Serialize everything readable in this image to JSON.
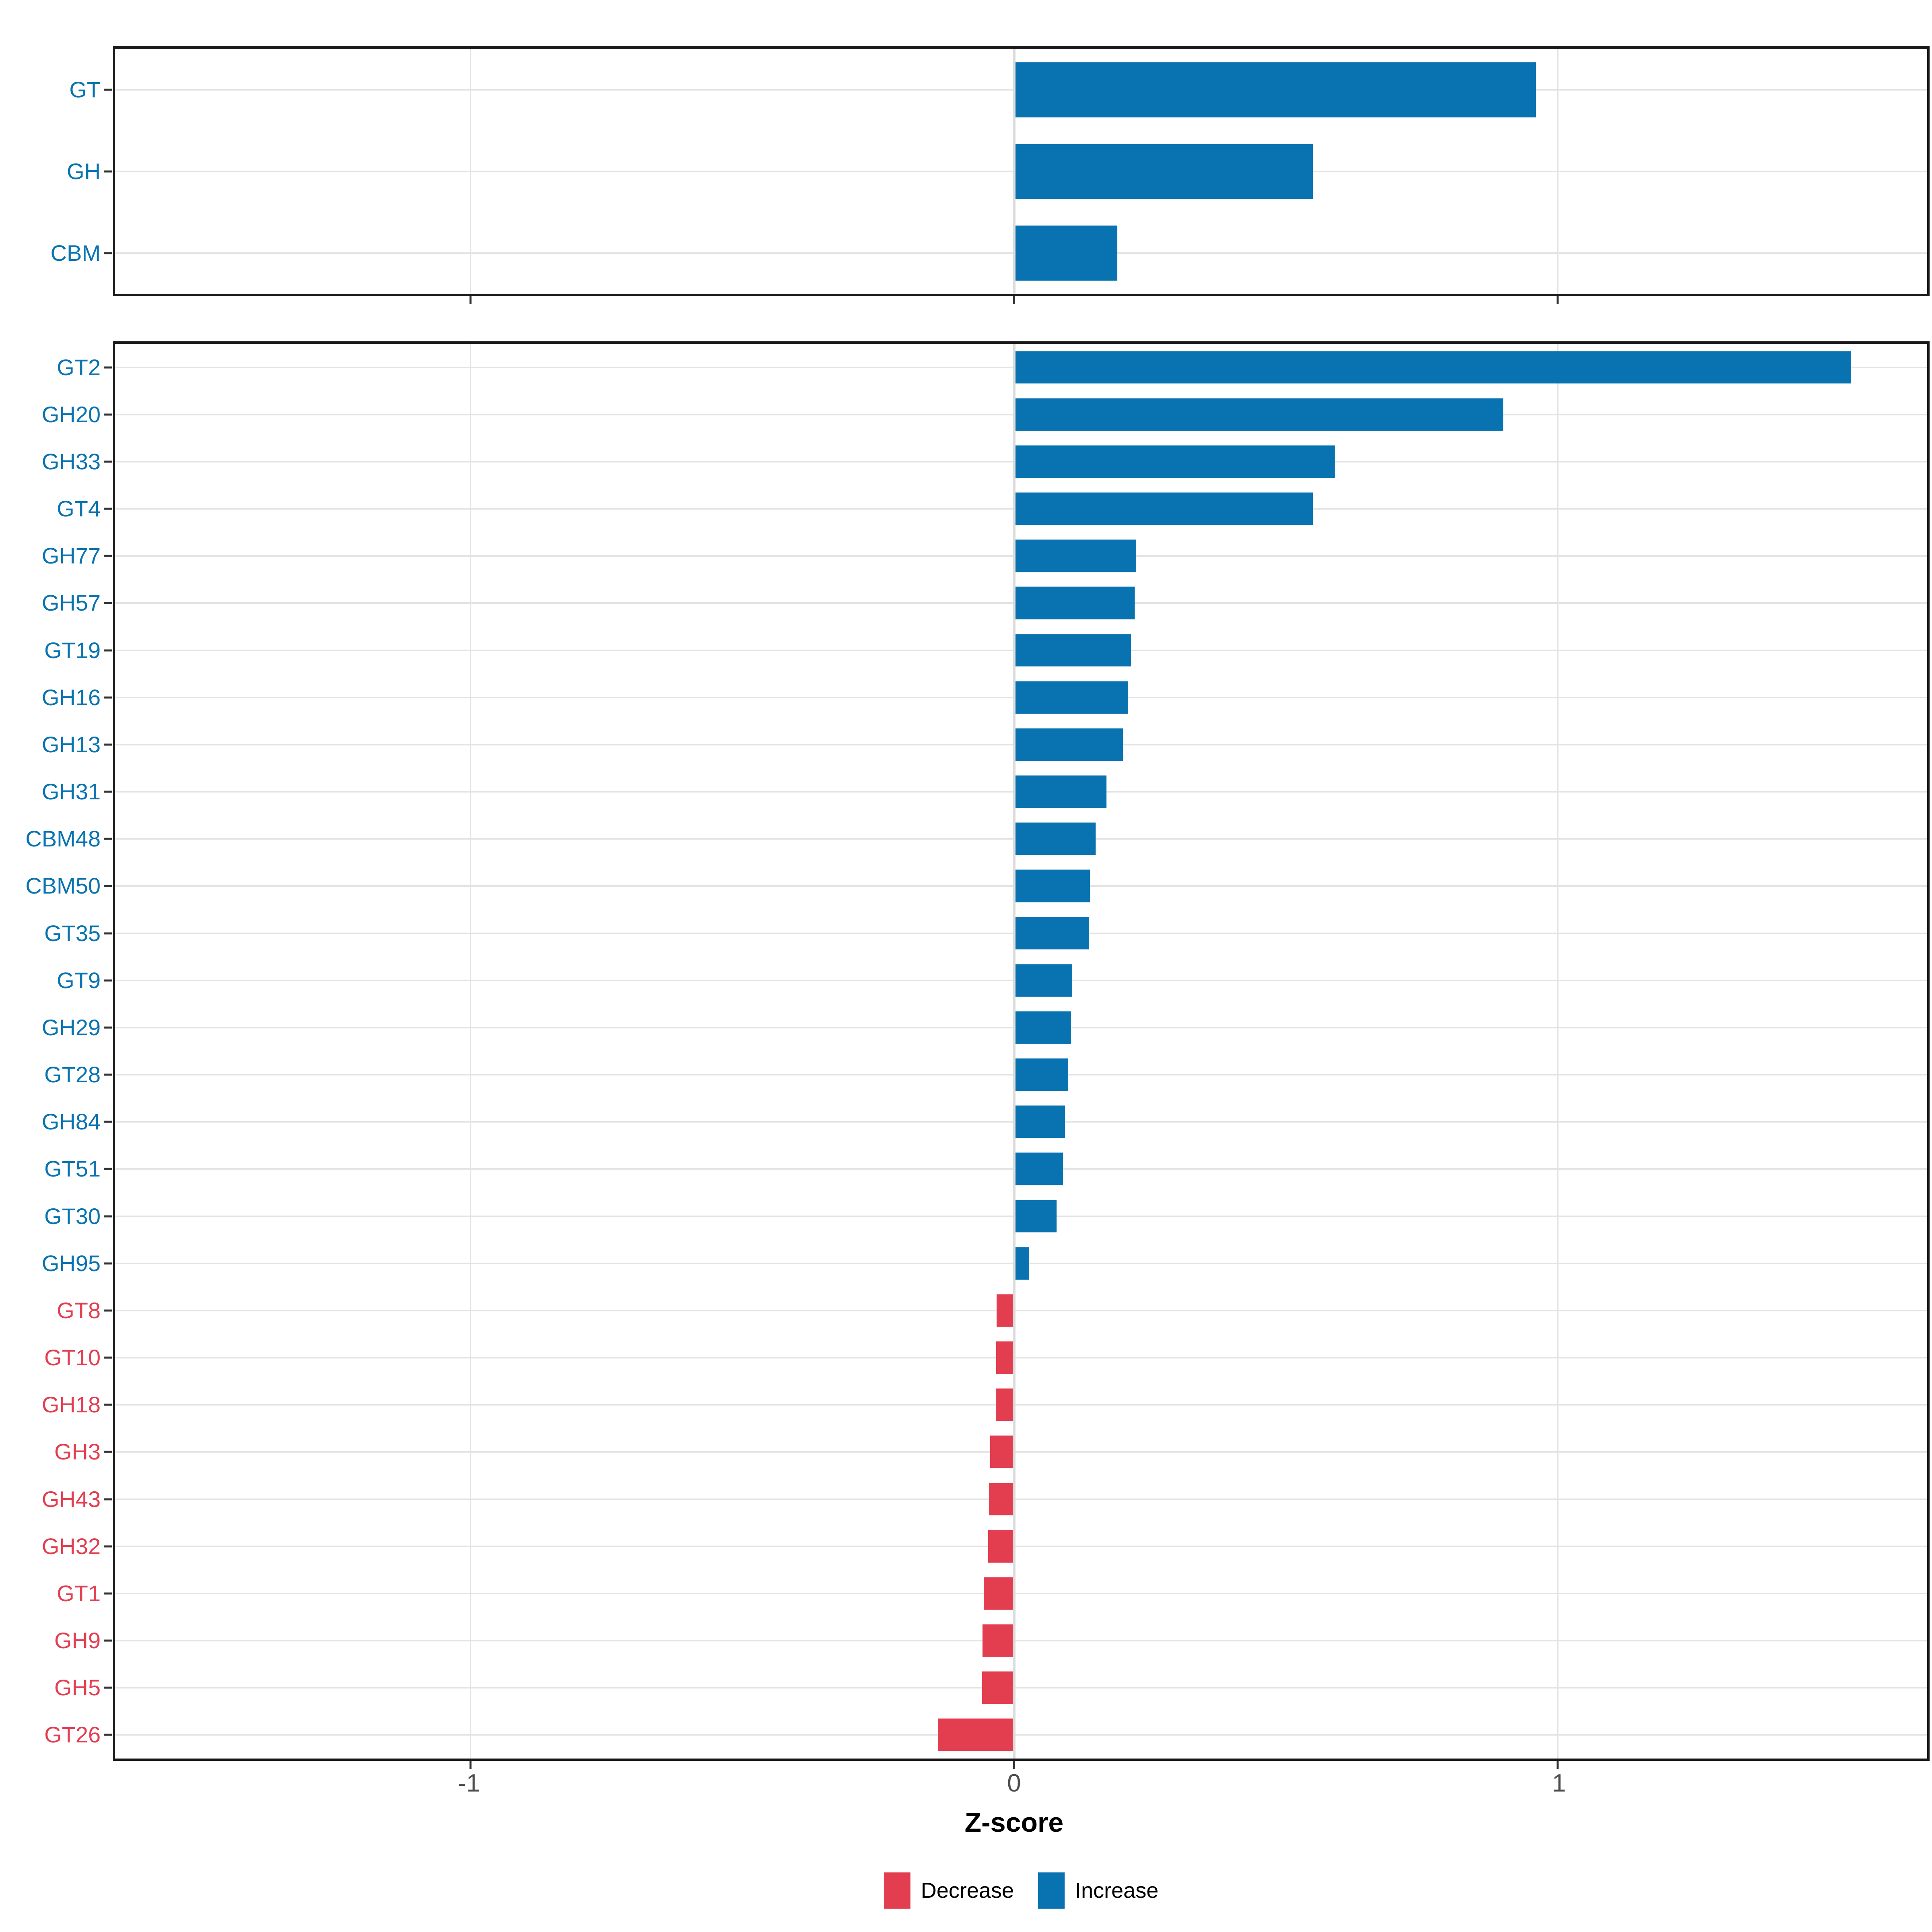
{
  "chart_data": {
    "type": "bar",
    "orientation": "horizontal",
    "title": "",
    "xlabel": "Z-score",
    "ylabel": "",
    "xlim": [
      -1.654,
      1.68
    ],
    "x_ticks": [
      -1,
      0,
      1
    ],
    "x_tick_labels": [
      "-1",
      "0",
      "1"
    ],
    "grid": "major-only",
    "legend_position": "bottom-center",
    "colors": {
      "increase": "#0873b0",
      "decrease": "#e33d50"
    },
    "legend": [
      {
        "label": "Decrease",
        "color": "#e33d50"
      },
      {
        "label": "Increase",
        "color": "#0873b0"
      }
    ],
    "panels": [
      {
        "categories": [
          "GT",
          "GH",
          "CBM"
        ],
        "values": [
          0.96,
          0.55,
          0.19
        ],
        "directions": [
          "increase",
          "increase",
          "increase"
        ]
      },
      {
        "categories": [
          "GT2",
          "GH20",
          "GH33",
          "GT4",
          "GH77",
          "GH57",
          "GT19",
          "GH16",
          "GH13",
          "GH31",
          "CBM48",
          "CBM50",
          "GT35",
          "GT9",
          "GH29",
          "GT28",
          "GH84",
          "GT51",
          "GT30",
          "GH95",
          "GT8",
          "GT10",
          "GH18",
          "GH3",
          "GH43",
          "GH32",
          "GT1",
          "GH9",
          "GH5",
          "GT26"
        ],
        "values": [
          1.54,
          0.9,
          0.59,
          0.55,
          0.225,
          0.222,
          0.215,
          0.21,
          0.2,
          0.17,
          0.15,
          0.14,
          0.138,
          0.107,
          0.105,
          0.1,
          0.094,
          0.09,
          0.078,
          0.028,
          -0.032,
          -0.033,
          -0.034,
          -0.044,
          -0.046,
          -0.048,
          -0.056,
          -0.058,
          -0.059,
          -0.14
        ],
        "directions": [
          "increase",
          "increase",
          "increase",
          "increase",
          "increase",
          "increase",
          "increase",
          "increase",
          "increase",
          "increase",
          "increase",
          "increase",
          "increase",
          "increase",
          "increase",
          "increase",
          "increase",
          "increase",
          "increase",
          "increase",
          "decrease",
          "decrease",
          "decrease",
          "decrease",
          "decrease",
          "decrease",
          "decrease",
          "decrease",
          "decrease",
          "decrease"
        ]
      }
    ]
  }
}
